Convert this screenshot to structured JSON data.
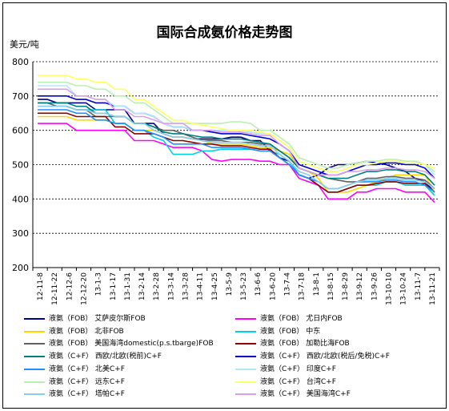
{
  "title": "国际合成氨价格走势图",
  "unit_label": "美元/吨",
  "chart_data": {
    "type": "line",
    "title": "国际合成氨价格走势图",
    "ylabel": "美元/吨",
    "ylim": [
      200,
      800
    ],
    "yticks": [
      200,
      300,
      400,
      500,
      600,
      700,
      800
    ],
    "grid": "horizontal dashed",
    "legend_position": "bottom",
    "x_tick_labels": [
      "12-11-8",
      "12-11-22",
      "12-12-6",
      "12-12-20",
      "13-1-3",
      "13-1-17",
      "13-1-31",
      "13-2-14",
      "13-2-28",
      "13-3-14",
      "13-3-28",
      "13-4-11",
      "13-4-25",
      "13-5-9",
      "13-5-23",
      "13-6-6",
      "13-6-20",
      "13-7-4",
      "13-7-18",
      "13-8-1",
      "13-8-15",
      "13-8-29",
      "13-9-12",
      "13-9-26",
      "13-10-10",
      "13-10-24",
      "13-11-7",
      "13-11-21"
    ],
    "series": [
      {
        "name": "液氨（FOB） 艾萨皮尔斯FOB",
        "color": "#00008b",
        "values": [
          690,
          690,
          680,
          680,
          680,
          680,
          660,
          660,
          660,
          660,
          620,
          620,
          620,
          590,
          580,
          580,
          575,
          575,
          575,
          575,
          580,
          580,
          570,
          570,
          540,
          520,
          510,
          470,
          460,
          470,
          490,
          500,
          500,
          505,
          510,
          505,
          500,
          490,
          480,
          460,
          450,
          420
        ]
      },
      {
        "name": "液氨（FOB） 尤日内FOB",
        "color": "#ff00ff",
        "values": [
          620,
          620,
          620,
          620,
          600,
          600,
          600,
          600,
          600,
          600,
          570,
          570,
          570,
          560,
          550,
          550,
          550,
          540,
          515,
          510,
          515,
          515,
          515,
          510,
          510,
          500,
          500,
          460,
          450,
          440,
          400,
          400,
          400,
          420,
          420,
          430,
          430,
          430,
          420,
          420,
          420,
          390
        ]
      },
      {
        "name": "液氨（FOB） 北非FOB",
        "color": "#ffd700",
        "values": [
          640,
          640,
          640,
          640,
          630,
          630,
          630,
          630,
          620,
          620,
          600,
          600,
          600,
          590,
          580,
          580,
          575,
          570,
          560,
          560,
          560,
          560,
          555,
          550,
          550,
          540,
          530,
          490,
          480,
          460,
          420,
          420,
          420,
          430,
          440,
          450,
          460,
          470,
          470,
          470,
          470,
          420
        ]
      },
      {
        "name": "液氨（FOB） 中东",
        "color": "#00d0e0",
        "values": [
          670,
          670,
          670,
          670,
          660,
          660,
          660,
          660,
          620,
          620,
          600,
          600,
          580,
          570,
          530,
          530,
          530,
          540,
          540,
          545,
          545,
          545,
          545,
          540,
          540,
          530,
          510,
          470,
          460,
          440,
          420,
          420,
          430,
          440,
          440,
          440,
          450,
          450,
          440,
          440,
          440,
          410
        ]
      },
      {
        "name": "液氨（FOB） 美国海湾domestic(p.s.tbarge)FOB",
        "color": "#606060",
        "values": [
          680,
          680,
          670,
          670,
          660,
          660,
          640,
          640,
          640,
          640,
          620,
          620,
          610,
          600,
          600,
          590,
          580,
          570,
          570,
          570,
          565,
          565,
          565,
          560,
          560,
          540,
          520,
          490,
          480,
          470,
          460,
          455,
          450,
          450,
          460,
          460,
          465,
          465,
          460,
          460,
          455,
          430
        ]
      },
      {
        "name": "液氨（FOB） 加勒比海FOB",
        "color": "#8b0000",
        "values": [
          650,
          650,
          650,
          650,
          640,
          640,
          640,
          640,
          610,
          610,
          590,
          590,
          590,
          580,
          570,
          570,
          565,
          560,
          560,
          555,
          555,
          555,
          550,
          545,
          545,
          520,
          500,
          470,
          460,
          440,
          420,
          420,
          430,
          440,
          440,
          445,
          450,
          450,
          445,
          445,
          445,
          420
        ]
      },
      {
        "name": "液氨（C+F） 西欧/北欧(税前)C+F",
        "color": "#008080",
        "values": [
          680,
          680,
          680,
          680,
          670,
          670,
          650,
          650,
          640,
          640,
          620,
          620,
          610,
          595,
          590,
          590,
          585,
          580,
          580,
          575,
          575,
          575,
          570,
          565,
          560,
          540,
          520,
          490,
          480,
          470,
          460,
          460,
          460,
          470,
          480,
          480,
          485,
          485,
          480,
          480,
          470,
          440
        ]
      },
      {
        "name": "液氨（C+F） 西欧/北欧(税后/免税)C+F",
        "color": "#0000cd",
        "values": [
          700,
          700,
          700,
          700,
          690,
          690,
          680,
          680,
          670,
          670,
          650,
          650,
          640,
          620,
          610,
          610,
          600,
          600,
          595,
          590,
          590,
          590,
          585,
          580,
          575,
          560,
          540,
          500,
          490,
          480,
          470,
          470,
          480,
          490,
          500,
          500,
          505,
          505,
          500,
          500,
          490,
          460
        ]
      },
      {
        "name": "液氨（C+F） 北美C+F",
        "color": "#1e90ff",
        "values": [
          660,
          660,
          660,
          660,
          650,
          650,
          630,
          630,
          620,
          620,
          600,
          600,
          590,
          580,
          560,
          560,
          560,
          560,
          550,
          550,
          550,
          550,
          545,
          540,
          540,
          520,
          500,
          470,
          460,
          450,
          430,
          430,
          440,
          450,
          450,
          450,
          455,
          455,
          450,
          450,
          440,
          420
        ]
      },
      {
        "name": "液氨（C+F） 印度C+F",
        "color": "#b0e8f8",
        "values": [
          730,
          730,
          730,
          730,
          700,
          700,
          690,
          690,
          670,
          670,
          650,
          650,
          640,
          620,
          610,
          610,
          600,
          600,
          600,
          600,
          600,
          600,
          595,
          590,
          590,
          570,
          550,
          510,
          500,
          490,
          480,
          480,
          490,
          500,
          500,
          505,
          510,
          510,
          505,
          505,
          500,
          470
        ]
      },
      {
        "name": "液氨（C+F） 远东C+F",
        "color": "#b8f0b0",
        "values": [
          740,
          740,
          740,
          740,
          730,
          730,
          720,
          720,
          700,
          700,
          680,
          680,
          660,
          640,
          620,
          620,
          620,
          620,
          620,
          620,
          625,
          625,
          620,
          600,
          600,
          580,
          560,
          520,
          510,
          500,
          490,
          490,
          500,
          505,
          510,
          510,
          515,
          515,
          510,
          510,
          500,
          480
        ]
      },
      {
        "name": "液氨（C+F） 台湾C+F",
        "color": "#ffff66",
        "values": [
          760,
          760,
          760,
          760,
          750,
          750,
          740,
          740,
          720,
          720,
          690,
          690,
          670,
          650,
          630,
          630,
          620,
          615,
          610,
          605,
          600,
          600,
          600,
          595,
          590,
          570,
          550,
          510,
          500,
          490,
          480,
          480,
          490,
          500,
          500,
          505,
          510,
          510,
          505,
          505,
          500,
          490
        ]
      },
      {
        "name": "液氨（C+F） 塔帕C+F",
        "color": "#87ceeb",
        "values": [
          670,
          670,
          670,
          670,
          660,
          660,
          650,
          650,
          640,
          640,
          620,
          620,
          600,
          590,
          580,
          580,
          575,
          570,
          565,
          565,
          565,
          565,
          560,
          555,
          555,
          530,
          510,
          480,
          470,
          450,
          430,
          430,
          440,
          450,
          455,
          455,
          460,
          460,
          455,
          455,
          450,
          430
        ]
      },
      {
        "name": "液氨（C+F） 美国海湾C+F",
        "color": "#d8a0e8",
        "values": [
          720,
          720,
          720,
          720,
          700,
          700,
          690,
          690,
          660,
          660,
          640,
          640,
          630,
          620,
          620,
          620,
          600,
          600,
          600,
          595,
          595,
          595,
          590,
          585,
          585,
          560,
          540,
          490,
          480,
          470,
          470,
          470,
          480,
          480,
          485,
          485,
          490,
          490,
          485,
          485,
          480,
          460
        ]
      }
    ]
  },
  "legend": {
    "items": [
      {
        "text": "液氨（FOB） 艾萨皮尔斯FOB",
        "color": "#00008b"
      },
      {
        "text": "液氨（FOB） 尤日内FOB",
        "color": "#ff00ff"
      },
      {
        "text": "液氨（FOB） 北非FOB",
        "color": "#ffd700"
      },
      {
        "text": "液氨（FOB） 中东",
        "color": "#00d0e0"
      },
      {
        "text": "液氨（FOB） 美国海湾domestic(p.s.tbarge)FOB",
        "color": "#606060"
      },
      {
        "text": "液氨（FOB） 加勒比海FOB",
        "color": "#8b0000"
      },
      {
        "text": "液氨（C+F） 西欧/北欧(税前)C+F",
        "color": "#008080"
      },
      {
        "text": "液氨（C+F） 西欧/北欧(税后/免税)C+F",
        "color": "#0000cd"
      },
      {
        "text": "液氨（C+F） 北美C+F",
        "color": "#1e90ff"
      },
      {
        "text": "液氨（C+F） 印度C+F",
        "color": "#b0e8f8"
      },
      {
        "text": "液氨（C+F） 远东C+F",
        "color": "#b8f0b0"
      },
      {
        "text": "液氨（C+F） 台湾C+F",
        "color": "#ffff66"
      },
      {
        "text": "液氨（C+F） 塔帕C+F",
        "color": "#87ceeb"
      },
      {
        "text": "液氨（C+F） 美国海湾C+F",
        "color": "#d8a0e8"
      }
    ]
  }
}
